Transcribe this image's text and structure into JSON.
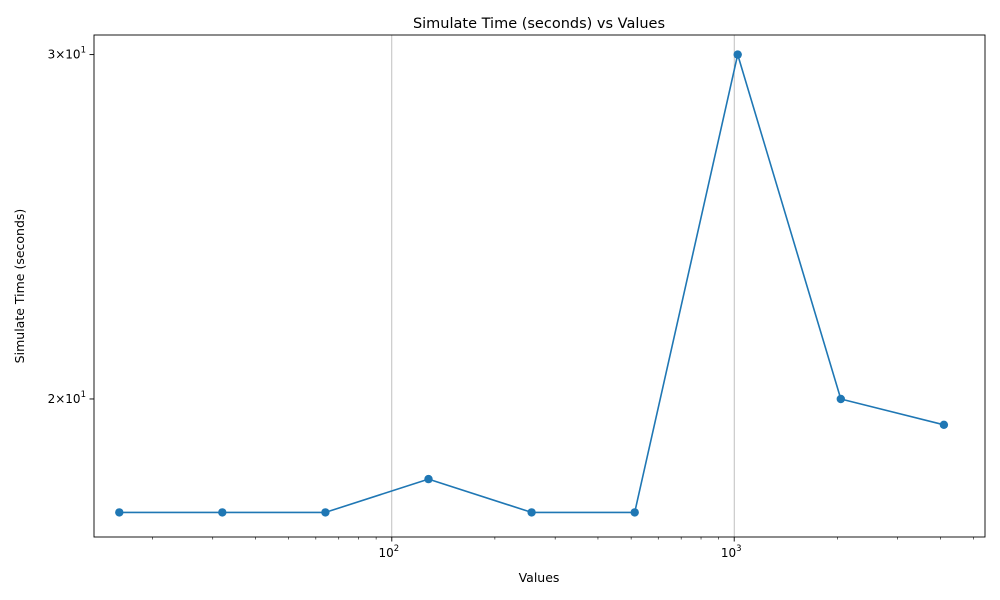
{
  "chart_data": {
    "type": "line",
    "title": "Simulate Time (seconds) vs Values",
    "xlabel": "Values",
    "ylabel": "Simulate Time (seconds)",
    "xscale": "log",
    "yscale": "log",
    "xlim": [
      13.5,
      5400
    ],
    "ylim": [
      17.0,
      30.7
    ],
    "grid": "x-major",
    "series": [
      {
        "name": "Simulate Time",
        "color": "#1f77b4",
        "marker": "circle",
        "x": [
          16,
          32,
          64,
          128,
          256,
          512,
          1024,
          2048,
          4096
        ],
        "y": [
          17.5,
          17.5,
          17.5,
          18.2,
          17.5,
          17.5,
          30.0,
          20.0,
          19.4
        ]
      }
    ],
    "x_ticks": [
      {
        "value": 100,
        "base": "10",
        "exp": "2"
      },
      {
        "value": 1000,
        "base": "10",
        "exp": "3"
      }
    ],
    "y_ticks": [
      {
        "value": 20,
        "prefix": "2×10",
        "exp": "1"
      },
      {
        "value": 30,
        "prefix": "3×10",
        "exp": "1"
      }
    ]
  }
}
